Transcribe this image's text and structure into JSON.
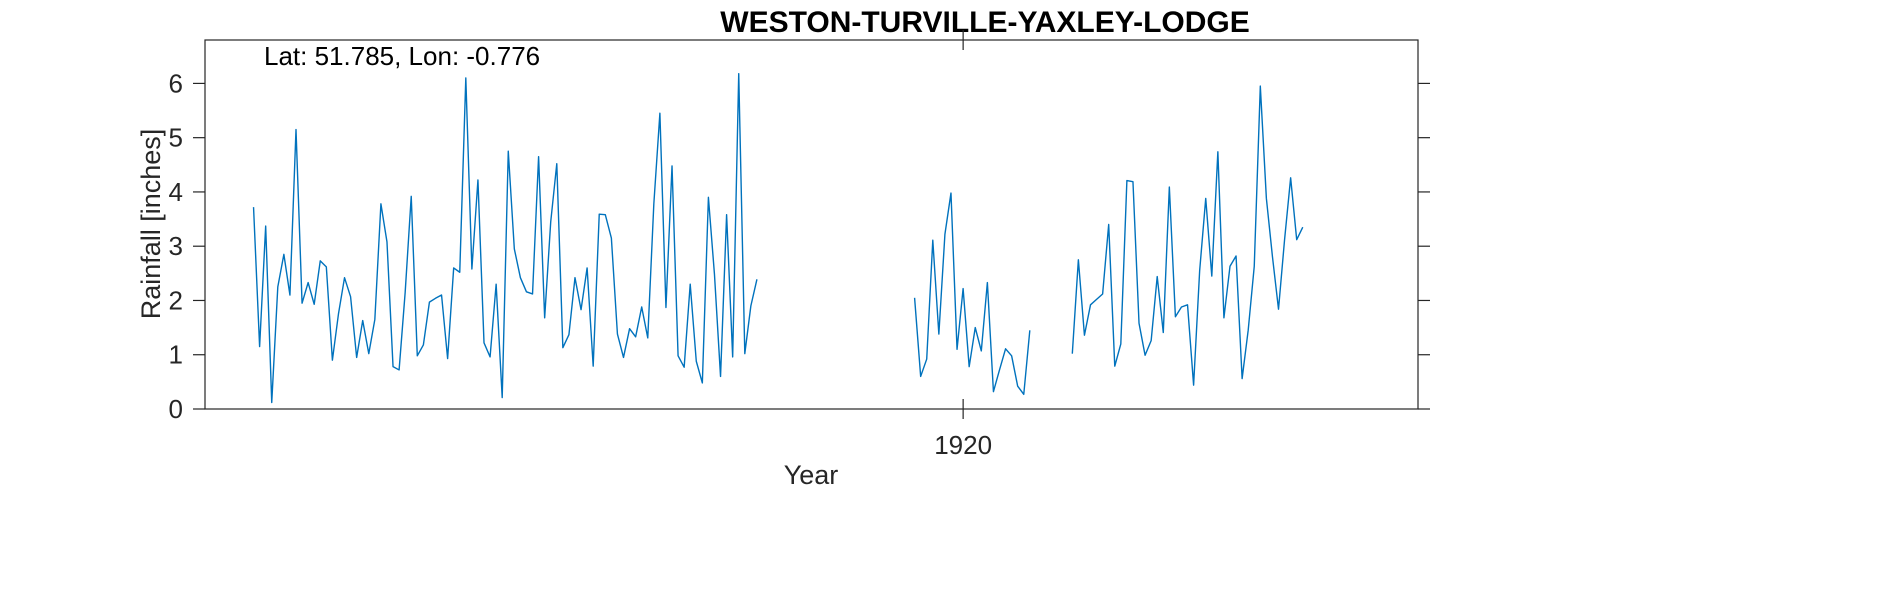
{
  "chart_data": {
    "type": "line",
    "title": "WESTON-TURVILLE-YAXLEY-LODGE",
    "annotation": "Lat: 51.785, Lon: -0.776",
    "xlabel": "Year",
    "ylabel": "Rainfall [inches]",
    "xlim": [
      1909.583,
      1926.25
    ],
    "ylim": [
      0,
      6.8
    ],
    "yticks": [
      0,
      1,
      2,
      3,
      4,
      5,
      6
    ],
    "xticks": [
      {
        "value": 1920,
        "label": "1920"
      }
    ],
    "grid": false,
    "color": "#0072BD",
    "series": [
      {
        "segments": [
          {
            "start": 1910.25,
            "step": 0.0833333,
            "values": [
              3.72,
              1.15,
              3.37,
              0.12,
              2.25,
              2.85,
              2.1,
              5.15,
              1.95,
              2.33,
              1.93,
              2.73,
              2.62,
              0.9,
              1.75,
              2.42,
              2.07,
              0.95,
              1.63,
              1.02,
              1.65,
              3.78,
              3.08,
              0.78,
              0.72,
              2.15,
              3.92,
              0.98,
              1.18,
              1.97,
              2.04,
              2.1,
              0.93,
              2.6,
              2.52,
              6.1,
              2.58,
              4.22,
              1.22,
              0.96,
              2.3,
              0.21,
              4.75,
              2.95,
              2.42,
              2.16,
              2.12,
              4.65,
              1.68,
              3.45,
              4.52,
              1.13,
              1.37,
              2.42,
              1.83,
              2.6,
              0.79,
              3.59,
              3.58,
              3.15,
              1.38,
              0.95,
              1.48,
              1.33,
              1.88,
              1.31,
              3.78,
              5.45,
              1.87,
              4.48,
              0.98,
              0.77,
              2.3,
              0.88,
              0.48,
              3.9,
              2.48,
              0.6,
              3.58,
              0.96,
              6.18,
              1.02,
              1.9,
              2.39
            ]
          },
          {
            "start": 1919.333,
            "step": 0.0833333,
            "values": [
              2.05,
              0.6,
              0.92,
              3.11,
              1.38,
              3.22,
              3.98,
              1.1,
              2.22,
              0.78,
              1.5,
              1.07,
              2.33,
              0.32,
              0.72,
              1.11,
              0.98,
              0.42,
              0.27,
              1.45
            ]
          },
          {
            "start": 1921.5,
            "step": 0.0833333,
            "values": [
              1.02,
              2.75,
              1.36,
              1.92,
              2.02,
              2.12,
              3.4,
              0.79,
              1.2,
              4.21,
              4.19,
              1.58,
              0.99,
              1.26,
              2.44,
              1.41,
              4.09,
              1.7,
              1.88,
              1.92,
              0.44,
              2.55,
              3.88,
              2.45,
              4.74,
              1.68,
              2.63,
              2.82,
              0.56,
              1.45,
              2.63,
              5.95,
              3.88,
              2.81,
              1.84,
              3.12,
              4.26,
              3.12,
              3.35
            ]
          }
        ]
      }
    ]
  }
}
